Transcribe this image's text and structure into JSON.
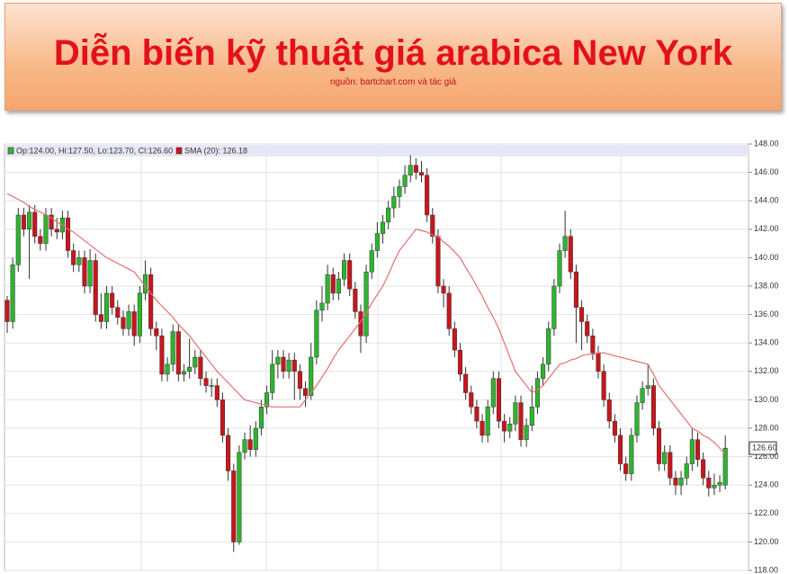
{
  "chart_data": {
    "type": "candlestick",
    "title": "Diễn biến kỹ thuật giá arabica New York",
    "subtitle": "nguồn: bartchart.com và tác giả",
    "ohlc_label": "Op:124.00, Hi:127.50, Lo:123.70, Cl:126.60",
    "up_color": "#2db52d",
    "down_color": "#c8161c",
    "ohlc": [
      [
        137,
        137.3,
        134.7,
        135.5
      ],
      [
        135.5,
        140,
        135,
        139.5
      ],
      [
        139.5,
        143.5,
        139,
        143
      ],
      [
        143,
        143.5,
        141.5,
        142
      ],
      [
        142,
        143.7,
        138.5,
        143.2
      ],
      [
        143.2,
        143.7,
        141,
        141.5
      ],
      [
        141.5,
        142,
        140.5,
        141
      ],
      [
        141,
        143.5,
        140.5,
        143
      ],
      [
        143,
        143.5,
        141.5,
        142
      ],
      [
        142,
        142.8,
        141.3,
        141.8
      ],
      [
        141.8,
        143.3,
        141.3,
        142.8
      ],
      [
        142.8,
        143.3,
        140,
        140.5
      ],
      [
        140.5,
        141,
        139,
        139.5
      ],
      [
        139.5,
        140.5,
        139,
        140
      ],
      [
        140,
        140.5,
        137.5,
        138
      ],
      [
        138,
        140.6,
        137.5,
        139.8
      ],
      [
        139.8,
        140.3,
        135.5,
        136
      ],
      [
        136,
        137.5,
        135,
        135.5
      ],
      [
        135.5,
        138,
        135,
        137.5
      ],
      [
        137.5,
        138,
        136,
        136.5
      ],
      [
        136.5,
        137,
        135.3,
        135.8
      ],
      [
        135.8,
        136.3,
        134.5,
        135
      ],
      [
        135,
        136.7,
        134.5,
        136.2
      ],
      [
        136.2,
        136.7,
        133.8,
        134.5
      ],
      [
        134.5,
        138,
        134,
        137.5
      ],
      [
        137.5,
        139.8,
        137,
        138.8
      ],
      [
        138.8,
        139.3,
        134.5,
        135
      ],
      [
        135,
        135.5,
        133.5,
        134.5
      ],
      [
        134.5,
        135,
        131.3,
        131.8
      ],
      [
        131.8,
        133,
        131.3,
        132.5
      ],
      [
        132.5,
        135.3,
        132,
        134.8
      ],
      [
        134.8,
        135.3,
        131.3,
        131.8
      ],
      [
        131.8,
        132.5,
        131.3,
        132
      ],
      [
        132,
        134.3,
        131.5,
        132.3
      ],
      [
        132.3,
        133.5,
        131.8,
        133
      ],
      [
        133,
        133.5,
        131,
        131.5
      ],
      [
        131.5,
        132,
        130.5,
        131
      ],
      [
        131,
        131.5,
        130.2,
        131
      ],
      [
        131,
        131.5,
        129.5,
        130
      ],
      [
        130,
        130.5,
        127,
        127.5
      ],
      [
        127.5,
        128,
        124.3,
        125
      ],
      [
        125,
        125.5,
        119.3,
        120
      ],
      [
        120,
        126.8,
        119.8,
        126.3
      ],
      [
        126.3,
        127.7,
        125.8,
        127.2
      ],
      [
        127.2,
        128.2,
        126,
        126.5
      ],
      [
        126.5,
        128.5,
        126,
        128
      ],
      [
        128,
        130,
        127.5,
        129.5
      ],
      [
        129.5,
        131,
        129,
        130.5
      ],
      [
        130.5,
        133.5,
        130,
        132.5
      ],
      [
        132.5,
        133.5,
        131.5,
        133
      ],
      [
        133,
        133.5,
        131.5,
        132
      ],
      [
        132,
        133.3,
        131.5,
        132.8
      ],
      [
        132.8,
        133.3,
        130,
        132
      ],
      [
        132,
        132.5,
        130,
        130.8
      ],
      [
        130.8,
        131.3,
        129.5,
        130.3
      ],
      [
        130.3,
        134,
        130,
        133
      ],
      [
        133,
        137,
        132.5,
        136.3
      ],
      [
        136.3,
        138,
        135.5,
        136.8
      ],
      [
        136.8,
        139.5,
        136.3,
        138.8
      ],
      [
        138.8,
        139.3,
        137,
        137.5
      ],
      [
        137.5,
        139,
        137,
        138.5
      ],
      [
        138.5,
        140.3,
        138,
        139.8
      ],
      [
        139.8,
        140.3,
        137.3,
        137.8
      ],
      [
        137.8,
        138.3,
        135.7,
        136.2
      ],
      [
        136.2,
        136.7,
        133.3,
        134.5
      ],
      [
        134.5,
        139.5,
        134,
        139
      ],
      [
        139,
        141,
        138.5,
        140.5
      ],
      [
        140.5,
        142.5,
        140,
        141.7
      ],
      [
        141.7,
        143,
        141,
        142.5
      ],
      [
        142.5,
        144,
        142,
        143.5
      ],
      [
        143.5,
        145,
        142.8,
        144.3
      ],
      [
        144.3,
        145.5,
        143.5,
        145
      ],
      [
        145,
        146.5,
        144.5,
        145.8
      ],
      [
        145.8,
        147.2,
        145.3,
        146.5
      ],
      [
        146.5,
        147,
        145.5,
        146
      ],
      [
        146,
        146.8,
        145.3,
        145.8
      ],
      [
        145.8,
        146.3,
        142.5,
        143
      ],
      [
        143,
        143.5,
        141,
        141.5
      ],
      [
        141.5,
        142,
        137.5,
        138
      ],
      [
        138,
        138.5,
        136.5,
        137.5
      ],
      [
        137.5,
        138,
        134.5,
        135
      ],
      [
        135,
        135.5,
        133,
        133.5
      ],
      [
        133.5,
        134,
        131.3,
        131.8
      ],
      [
        131.8,
        132.3,
        130,
        130.5
      ],
      [
        130.5,
        131,
        129,
        129.5
      ],
      [
        129.5,
        130,
        128,
        128.5
      ],
      [
        128.5,
        129,
        127,
        127.5
      ],
      [
        127.5,
        130,
        127,
        129.5
      ],
      [
        129.5,
        132,
        129,
        131.5
      ],
      [
        131.5,
        132,
        128,
        128.5
      ],
      [
        128.5,
        129,
        127,
        127.8
      ],
      [
        127.8,
        128.8,
        127.3,
        128.3
      ],
      [
        128.3,
        130.3,
        127.8,
        129.8
      ],
      [
        129.8,
        130.3,
        126.7,
        127.2
      ],
      [
        127.2,
        128.7,
        126.7,
        128.2
      ],
      [
        128.2,
        131,
        127.8,
        129.5
      ],
      [
        129.5,
        132,
        129,
        131.5
      ],
      [
        131.5,
        133,
        131,
        132.5
      ],
      [
        132.5,
        135.5,
        132,
        135
      ],
      [
        135,
        138.5,
        134.5,
        138
      ],
      [
        138,
        141,
        137.5,
        140.5
      ],
      [
        140.5,
        143.3,
        140,
        141.5
      ],
      [
        141.5,
        142,
        138.5,
        139
      ],
      [
        139,
        139.5,
        134,
        136.5
      ],
      [
        136.5,
        137,
        133.5,
        135.5
      ],
      [
        135.5,
        136,
        134,
        134.5
      ],
      [
        134.5,
        135,
        132.8,
        133.3
      ],
      [
        133.3,
        133.8,
        131.5,
        132
      ],
      [
        132,
        132.5,
        129.5,
        130
      ],
      [
        130,
        130.5,
        128,
        128.5
      ],
      [
        128.5,
        129,
        127,
        127.5
      ],
      [
        127.5,
        128,
        125,
        125.5
      ],
      [
        125.5,
        126,
        124.3,
        124.8
      ],
      [
        124.8,
        128,
        124.3,
        127.5
      ],
      [
        127.5,
        130.3,
        127,
        129.8
      ],
      [
        129.8,
        131.3,
        129.3,
        130.8
      ],
      [
        130.8,
        132.5,
        130.3,
        131
      ],
      [
        131,
        131.5,
        127.5,
        128
      ],
      [
        128,
        128.5,
        125,
        125.5
      ],
      [
        125.5,
        126.8,
        125,
        126.3
      ],
      [
        126.3,
        126.8,
        124,
        124.5
      ],
      [
        124.5,
        125,
        123.3,
        124
      ],
      [
        124,
        125,
        123.3,
        124.5
      ],
      [
        124.5,
        126,
        124,
        125.5
      ],
      [
        125.5,
        128,
        125,
        127.2
      ],
      [
        127.2,
        127.7,
        125.3,
        125.8
      ],
      [
        125.8,
        126.3,
        124,
        124.5
      ],
      [
        124.5,
        125,
        123.2,
        123.8
      ],
      [
        123.8,
        124.8,
        123.3,
        124
      ],
      [
        124,
        124.7,
        123.5,
        124.2
      ],
      [
        124,
        127.5,
        123.7,
        126.6
      ]
    ],
    "sma": {
      "name": "SMA (20): 126.18",
      "color": "#e47070",
      "values": [
        144.5,
        144.3,
        144.1,
        143.9,
        143.6,
        143.4,
        143.2,
        143,
        142.8,
        142.5,
        142.3,
        142,
        141.8,
        141.5,
        141.2,
        140.9,
        140.6,
        140.3,
        140,
        139.8,
        139.6,
        139.4,
        139.2,
        139,
        138.5,
        138,
        137.5,
        137,
        136.6,
        136.2,
        135.8,
        135.3,
        134.9,
        134.5,
        134,
        133.5,
        133,
        132.5,
        132,
        131.6,
        131.2,
        130.8,
        130.4,
        130,
        129.9,
        129.8,
        129.7,
        129.6,
        129.5,
        129.5,
        129.5,
        129.5,
        129.5,
        129.5,
        130,
        130.5,
        131,
        131.6,
        132.2,
        132.9,
        133.5,
        134,
        134.5,
        135,
        135.5,
        136.1,
        136.8,
        137.4,
        138,
        138.8,
        139.7,
        140.5,
        141,
        141.5,
        142,
        141.9,
        141.8,
        141.6,
        141.5,
        141.1,
        140.8,
        140.4,
        140,
        139.3,
        138.7,
        138,
        137.3,
        136.5,
        135.8,
        135,
        134,
        133,
        132,
        131.5,
        131,
        130.5,
        130.7,
        131,
        131.5,
        132,
        132.5,
        132.6,
        132.8,
        132.9,
        133.1,
        133.2,
        133.2,
        133.3,
        133.3,
        133.2,
        133.1,
        133,
        132.9,
        132.8,
        132.7,
        132.6,
        132.5,
        131.8,
        131,
        130.5,
        130,
        129.5,
        129,
        128.5,
        128,
        127.8,
        127.5,
        127.3,
        127,
        126.6,
        126.18
      ]
    },
    "last_price_label": "126.60",
    "ylim": [
      118,
      148
    ],
    "yticks": [
      {
        "value": 118,
        "label": "118.00"
      },
      {
        "value": 120,
        "label": "120.00"
      },
      {
        "value": 122,
        "label": "122.00"
      },
      {
        "value": 124,
        "label": "124.00"
      },
      {
        "value": 126,
        "label": "126.00"
      },
      {
        "value": 128,
        "label": "128.00"
      },
      {
        "value": 130,
        "label": "130.00"
      },
      {
        "value": 132,
        "label": "132.00"
      },
      {
        "value": 134,
        "label": "134.00"
      },
      {
        "value": 136,
        "label": "136.00"
      },
      {
        "value": 138,
        "label": "138.00"
      },
      {
        "value": 140,
        "label": "140.00"
      },
      {
        "value": 142,
        "label": "142.00"
      },
      {
        "value": 144,
        "label": "144.00"
      },
      {
        "value": 146,
        "label": "146.00"
      },
      {
        "value": 148,
        "label": "148.00"
      }
    ],
    "grid": true
  }
}
